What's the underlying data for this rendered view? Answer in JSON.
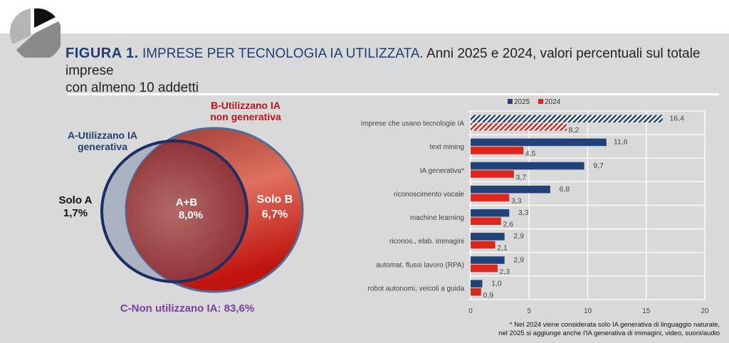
{
  "figure": {
    "label": "FIGURA 1.",
    "title": "IMPRESE PER TECNOLOGIA IA UTILIZZATA.",
    "subtitle_line1": "Anni 2025 e 2024, valori percentuali sul totale imprese",
    "subtitle_line2": "con almeno 10 addetti"
  },
  "venn": {
    "set_a_label_1": "A-Utilizzano IA",
    "set_a_label_2": "generativa",
    "set_b_label_1": "B-Utilizzano IA",
    "set_b_label_2": "non generativa",
    "solo_a_label": "Solo A",
    "solo_a_value": "1,7%",
    "ab_label": "A+B",
    "ab_value": "8,0%",
    "solo_b_label": "Solo B",
    "solo_b_value": "6,7%",
    "c_label": "C-Non utilizzano IA: 83,6%",
    "colors": {
      "a_outline": "#1b2f66",
      "a_fill": "#a9b3c2",
      "b_fill": "#d4473a",
      "b_outline": "#4a6f9a",
      "a_title": "#1f3f73",
      "b_title": "#c0141c",
      "c_title": "#7a3fa0"
    }
  },
  "chart_data": {
    "type": "bar",
    "orientation": "horizontal",
    "categories": [
      "imprese che usano tecnologie IA",
      "text mining",
      "IA generativa*",
      "riconoscimento vocale",
      "machine learning",
      "riconos., elab. immagini",
      "automat. flussi lavoro (RPA)",
      "robot autonomi, veicoli a guida"
    ],
    "series": [
      {
        "name": "2025",
        "color": "#1f4279",
        "values": [
          16.4,
          11.6,
          9.7,
          6.8,
          3.3,
          2.9,
          2.9,
          1.0
        ],
        "labels": [
          "16,4",
          "11,6",
          "9,7",
          "6,8",
          "3,3",
          "2,9",
          "2,9",
          "1,0"
        ]
      },
      {
        "name": "2024",
        "color": "#e3241b",
        "values": [
          8.2,
          4.5,
          3.7,
          3.3,
          2.6,
          2.1,
          2.3,
          0.9
        ],
        "labels": [
          "8,2",
          "4,5",
          "3,7",
          "3,3",
          "2,6",
          "2,1",
          "2,3",
          "0,9"
        ]
      }
    ],
    "hatched_categories": [
      "imprese che usano tecnologie IA"
    ],
    "xlim": [
      0,
      20
    ],
    "xticks": [
      "0",
      "5",
      "10",
      "15",
      "20"
    ],
    "grid": true,
    "legend_position": "top",
    "footnote_line1": "* Nel 2024 viene considerata solo IA generativa di linguaggio naturale,",
    "footnote_line2": "nel 2025 si aggiunge anche l'IA generativa di immagini, video, suoni/audio"
  }
}
